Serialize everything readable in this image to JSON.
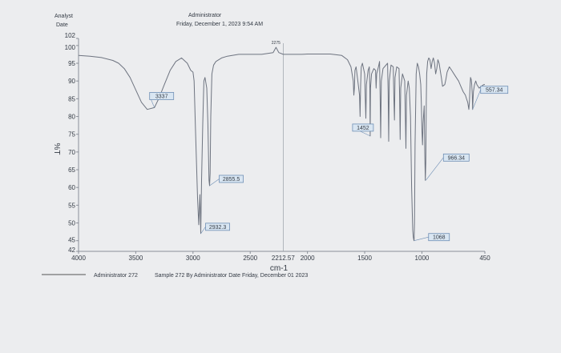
{
  "header": {
    "analyst_label": "Analyst",
    "date_label": "Date",
    "operator": "Administrator",
    "timestamp": "Friday, December 1, 2023 9:54 AM"
  },
  "footer": {
    "caption_left": "Administrator 272",
    "caption_right": "Sample 272 By Administrator Date Friday, December 01 2023"
  },
  "colors": {
    "trace": "#6e7480",
    "axis": "#8a8f98",
    "label_box_border": "#6f8fb5",
    "label_box_fill": "#d9e6f2",
    "text": "#333a44"
  },
  "chart_data": {
    "type": "line",
    "title": "",
    "xlabel": "cm-1",
    "ylabel": "%T",
    "xlim": [
      4000,
      450
    ],
    "ylim": [
      42,
      102
    ],
    "xticks": [
      "4000",
      "3500",
      "3000",
      "2500",
      "2000",
      "1500",
      "1000",
      "450"
    ],
    "xtick_values": [
      4000,
      3500,
      3000,
      2500,
      2000,
      1500,
      1000,
      450
    ],
    "yticks": [
      "42",
      "45",
      "50",
      "55",
      "60",
      "65",
      "70",
      "75",
      "80",
      "85",
      "90",
      "95",
      "100",
      "102"
    ],
    "ytick_values": [
      42,
      45,
      50,
      55,
      60,
      65,
      70,
      75,
      80,
      85,
      90,
      95,
      100,
      102
    ],
    "grid": false,
    "series": [
      {
        "x": [
          4000,
          3900,
          3800,
          3700,
          3650,
          3600,
          3550,
          3500,
          3450,
          3400,
          3337,
          3300,
          3250,
          3200,
          3150,
          3100,
          3050,
          3020,
          3000,
          2990,
          2980,
          2960,
          2950,
          2940,
          2932,
          2925,
          2915,
          2905,
          2895,
          2880,
          2870,
          2860,
          2855,
          2850,
          2845,
          2835,
          2820,
          2800,
          2750,
          2700,
          2600,
          2500,
          2400,
          2300,
          2275,
          2250,
          2212,
          2150,
          2050,
          2000,
          1900,
          1800,
          1700,
          1650,
          1620,
          1600,
          1595,
          1590,
          1585,
          1575,
          1560,
          1545,
          1540,
          1535,
          1530,
          1520,
          1500,
          1495,
          1490,
          1485,
          1470,
          1460,
          1455,
          1452,
          1449,
          1440,
          1420,
          1405,
          1400,
          1395,
          1380,
          1370,
          1365,
          1360,
          1355,
          1340,
          1300,
          1295,
          1290,
          1285,
          1270,
          1250,
          1245,
          1240,
          1235,
          1220,
          1200,
          1195,
          1190,
          1185,
          1170,
          1150,
          1145,
          1140,
          1135,
          1120,
          1110,
          1100,
          1090,
          1080,
          1075,
          1070,
          1068,
          1065,
          1060,
          1050,
          1040,
          1030,
          1020,
          1010,
          1005,
          1000,
          995,
          990,
          980,
          975,
          970,
          966,
          962,
          958,
          950,
          940,
          930,
          920,
          910,
          900,
          890,
          880,
          870,
          860,
          850,
          840,
          830,
          820,
          800,
          790,
          780,
          760,
          740,
          720,
          700,
          680,
          660,
          640,
          620,
          610,
          600,
          595,
          590,
          585,
          580,
          575,
          570,
          565,
          560,
          557,
          554,
          550,
          540,
          530,
          520,
          500,
          480,
          460,
          450
        ],
        "y": [
          97.2,
          97.0,
          96.6,
          95.8,
          95.0,
          93.5,
          91.0,
          87.5,
          84.0,
          82.0,
          82.5,
          85.0,
          89.0,
          93.0,
          95.5,
          96.5,
          95.0,
          93.0,
          92.5,
          90.0,
          78.0,
          57.0,
          49.5,
          58.0,
          47.0,
          62.0,
          78.0,
          90.0,
          91.0,
          88.0,
          78.0,
          62.0,
          60.5,
          64.0,
          80.0,
          92.0,
          94.5,
          95.5,
          96.5,
          97.0,
          97.5,
          97.5,
          97.5,
          98.0,
          99.5,
          98.0,
          97.5,
          97.5,
          97.5,
          97.6,
          97.6,
          97.6,
          97.2,
          96.0,
          94.0,
          90.0,
          86.0,
          88.0,
          93.0,
          94.0,
          90.0,
          86.0,
          80.0,
          89.0,
          94.0,
          95.0,
          92.0,
          85.0,
          79.5,
          89.0,
          93.0,
          94.0,
          88.0,
          74.5,
          88.0,
          92.0,
          93.5,
          93.0,
          88.0,
          92.0,
          94.0,
          95.5,
          86.0,
          74.0,
          90.0,
          93.5,
          95.0,
          87.0,
          73.0,
          90.0,
          94.5,
          94.0,
          85.0,
          79.0,
          91.0,
          94.0,
          93.5,
          86.0,
          73.5,
          88.0,
          92.0,
          90.0,
          81.0,
          71.0,
          86.0,
          90.0,
          88.0,
          80.0,
          60.0,
          48.0,
          46.0,
          45.0,
          45.2,
          50.0,
          72.0,
          92.0,
          95.0,
          94.0,
          92.0,
          89.0,
          84.0,
          76.0,
          72.0,
          78.0,
          83.0,
          70.0,
          62.0,
          67.0,
          84.0,
          92.0,
          95.5,
          96.5,
          96.0,
          93.5,
          95.5,
          96.5,
          95.0,
          92.0,
          93.5,
          96.0,
          95.0,
          93.0,
          91.0,
          88.5,
          89.0,
          90.5,
          92.5,
          94.0,
          93.0,
          92.0,
          91.0,
          90.0,
          88.5,
          87.0,
          86.0,
          85.0,
          84.0,
          83.0,
          82.0,
          84.0,
          88.0,
          91.0,
          90.5,
          89.0,
          86.0,
          82.0,
          84.0,
          87.0,
          89.0,
          90.0,
          89.0,
          88.0,
          88.5,
          89.0,
          89.0
        ]
      }
    ],
    "peak_labels": [
      {
        "text": "3337",
        "x": 3337,
        "y": 82.5
      },
      {
        "text": "2855.5",
        "x": 2855,
        "y": 60.5
      },
      {
        "text": "2932.3",
        "x": 2932,
        "y": 47.0
      },
      {
        "text": "1452",
        "x": 1452,
        "y": 74.5
      },
      {
        "text": "1068",
        "x": 1068,
        "y": 45.0
      },
      {
        "text": "966.34",
        "x": 966,
        "y": 62.0
      },
      {
        "text": "557.34",
        "x": 557,
        "y": 82.0
      }
    ],
    "annotations": [
      {
        "text": "2275",
        "x": 2275,
        "y": 99.5
      },
      {
        "text": "2212.57",
        "x": 2212,
        "y": 42
      }
    ]
  }
}
